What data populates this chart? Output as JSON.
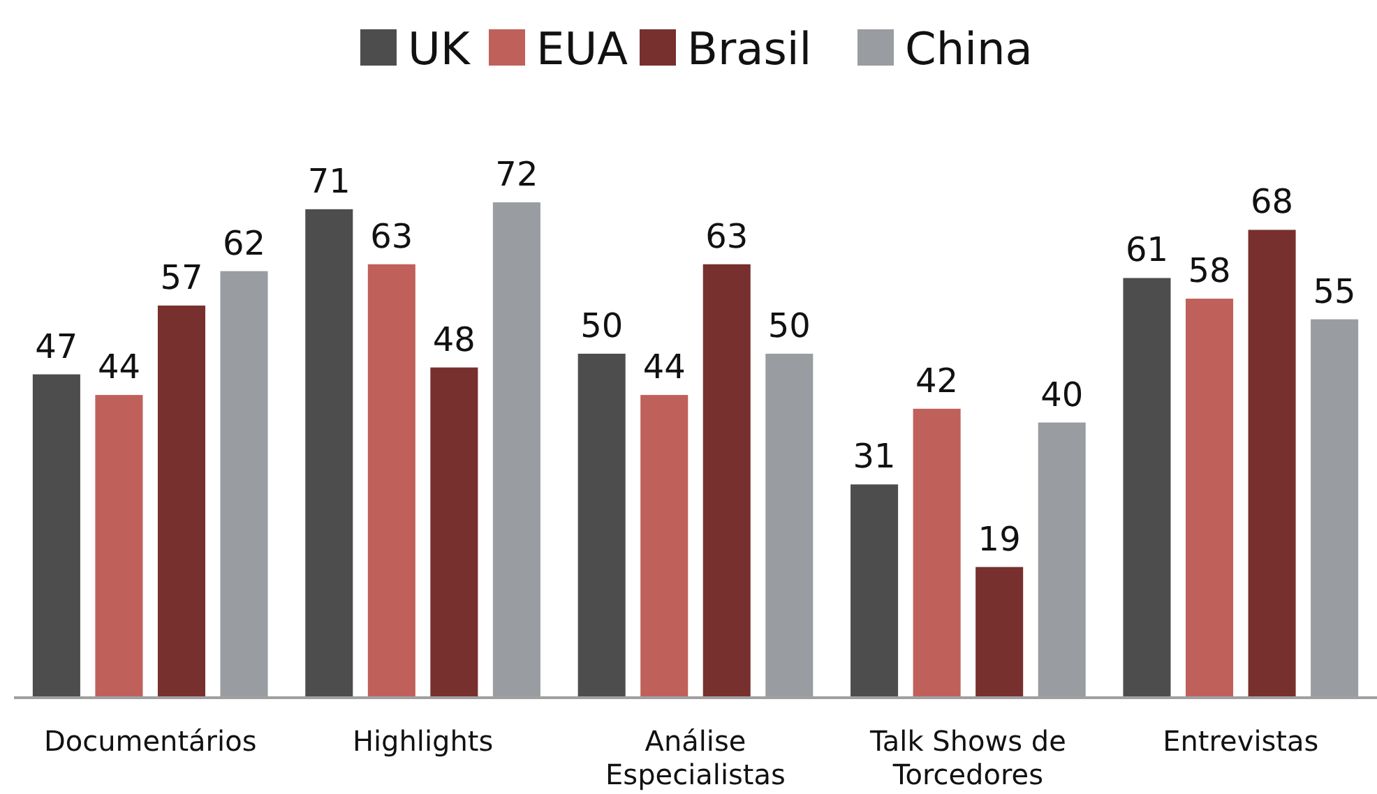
{
  "chart_data": {
    "type": "bar",
    "categories": [
      "Documentários",
      "Highlights",
      "Análise Especialistas",
      "Talk Shows de Torcedores",
      "Entrevistas"
    ],
    "series": [
      {
        "name": "UK",
        "color": "#4d4d4d",
        "values": [
          47,
          71,
          50,
          31,
          61
        ]
      },
      {
        "name": "EUA",
        "color": "#c0605a",
        "values": [
          44,
          63,
          44,
          42,
          58
        ]
      },
      {
        "name": "Brasil",
        "color": "#77302e",
        "values": [
          57,
          48,
          63,
          19,
          68
        ]
      },
      {
        "name": "China",
        "color": "#999ca0",
        "values": [
          62,
          72,
          50,
          40,
          55
        ]
      }
    ],
    "data_labels": true,
    "legend": "top"
  }
}
